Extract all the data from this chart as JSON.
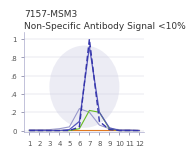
{
  "title1": "7157-MSM3",
  "title2": "Non-Specific Antibody Signal <10%",
  "xlim": [
    0.5,
    12.5
  ],
  "ylim": [
    -0.02,
    1.08
  ],
  "x_ticks": [
    1,
    2,
    3,
    4,
    5,
    6,
    7,
    8,
    9,
    10,
    11,
    12
  ],
  "x_values": [
    1,
    2,
    3,
    4,
    5,
    6,
    7,
    8,
    9,
    10,
    11,
    12
  ],
  "dashed_line": [
    0.0,
    0.0,
    0.0,
    0.0,
    0.0,
    0.04,
    1.0,
    0.1,
    0.01,
    0.0,
    0.0,
    0.0
  ],
  "solid_blue": [
    0.0,
    0.0,
    0.0,
    0.0,
    0.01,
    0.1,
    0.92,
    0.2,
    0.03,
    0.0,
    0.0,
    0.0
  ],
  "orange_line": [
    0.01,
    0.01,
    0.01,
    0.01,
    0.01,
    0.01,
    0.01,
    0.01,
    0.01,
    0.01,
    0.01,
    0.01
  ],
  "green_line": [
    0.0,
    0.0,
    0.0,
    0.0,
    0.0,
    0.02,
    0.22,
    0.2,
    0.02,
    0.0,
    0.0,
    0.0
  ],
  "lavender_line": [
    0.01,
    0.01,
    0.01,
    0.02,
    0.04,
    0.24,
    0.2,
    0.06,
    0.02,
    0.01,
    0.01,
    0.0
  ],
  "dashed_color": "#3333aa",
  "solid_blue_color": "#5555bb",
  "orange_color": "#e07820",
  "green_color": "#66bb22",
  "lavender_color": "#9999cc",
  "background_color": "#ffffff",
  "watermark_color": "#e0e0ee",
  "title_fontsize": 6.5,
  "tick_fontsize": 5.0
}
